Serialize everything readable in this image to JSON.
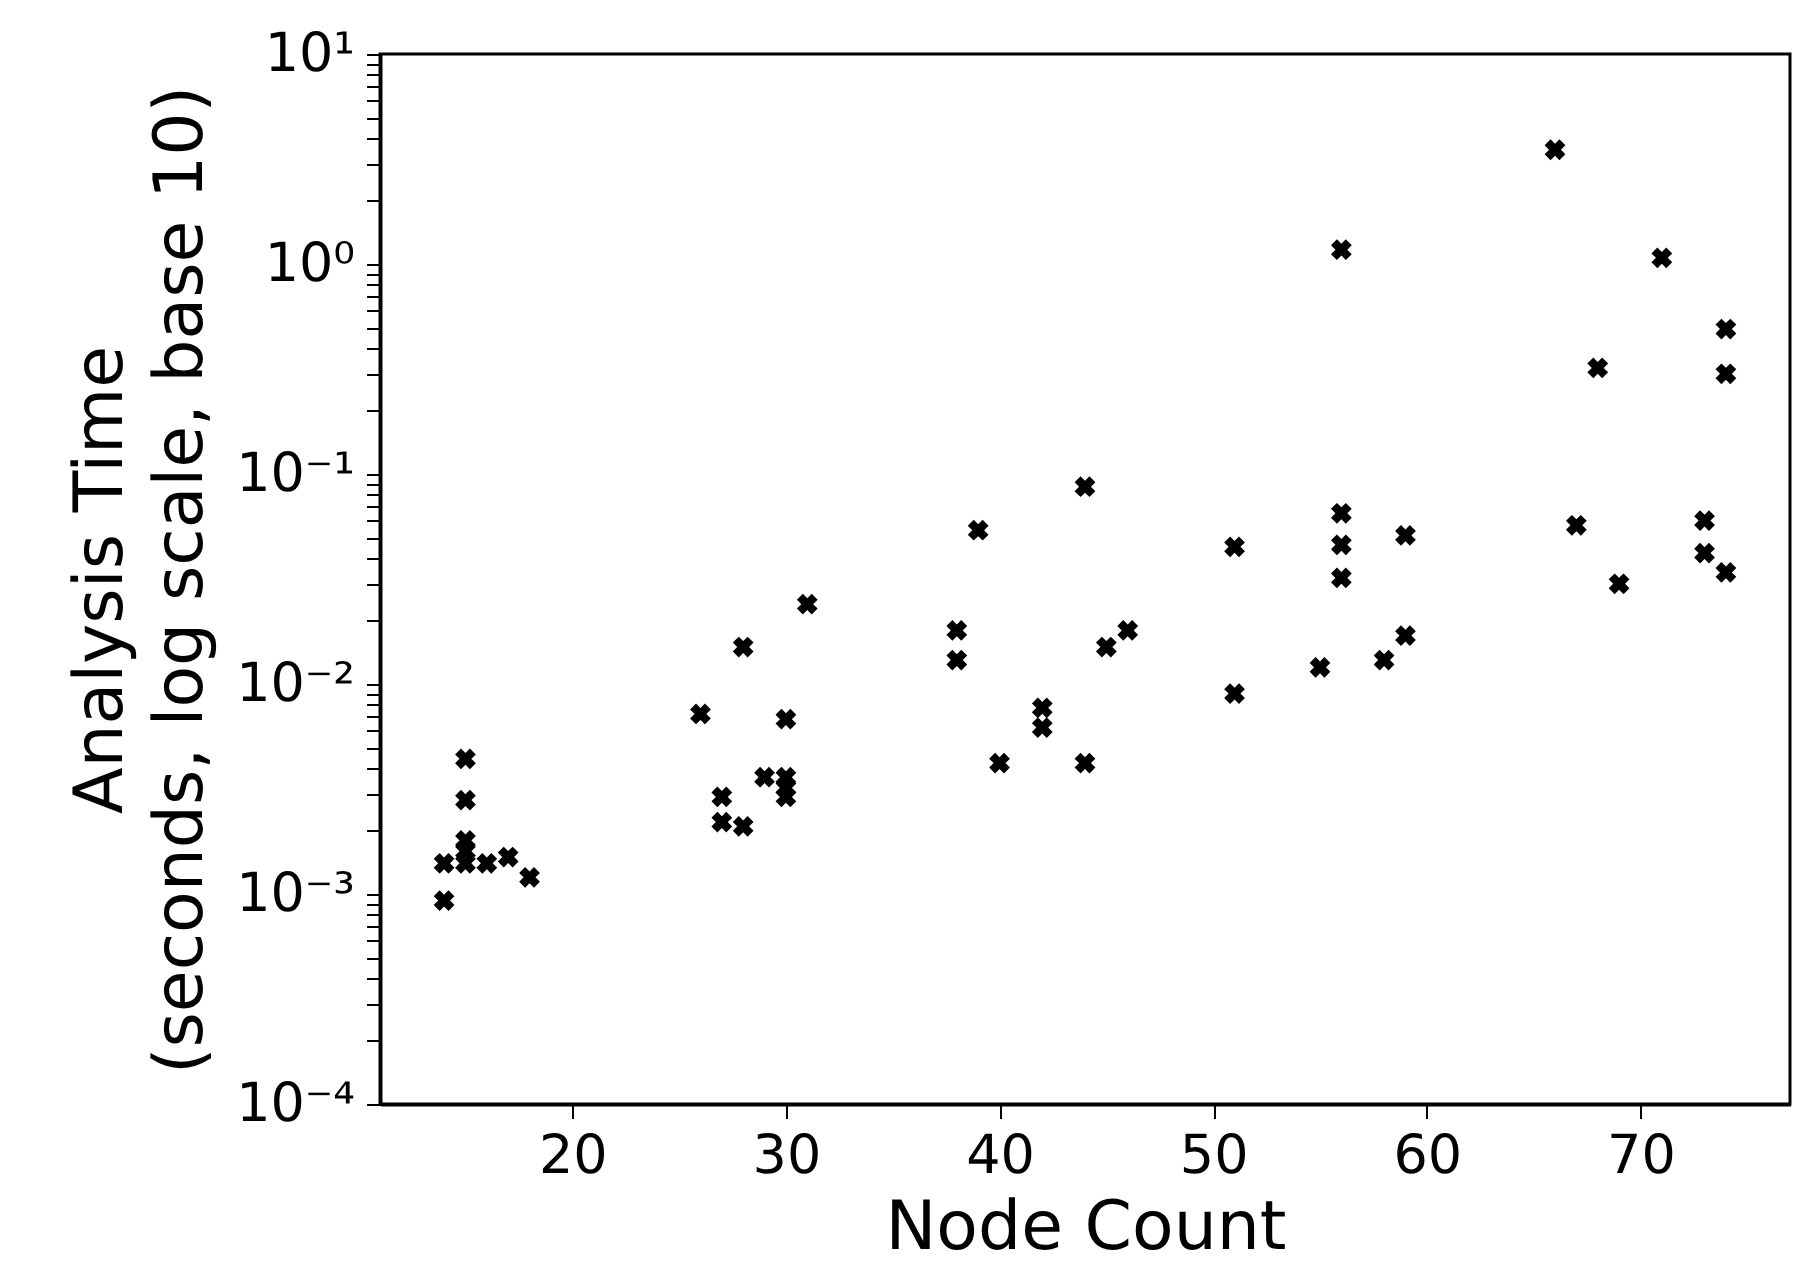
{
  "chart_data": {
    "type": "scatter",
    "xlabel": "Node Count",
    "ylabel": "Analysis Time\n(seconds, log scale, base 10)",
    "log": "y",
    "grid": false,
    "marker": "cross",
    "xlim": [
      11,
      77
    ],
    "xticks": [
      20,
      30,
      40,
      50,
      60,
      70
    ],
    "ylim": [
      0.0001,
      10
    ],
    "yticks": [
      {
        "value": 0.0001,
        "label": "10⁻⁴"
      },
      {
        "value": 0.001,
        "label": "10⁻³"
      },
      {
        "value": 0.01,
        "label": "10⁻²"
      },
      {
        "value": 0.1,
        "label": "10⁻¹"
      },
      {
        "value": 1,
        "label": "10⁰"
      },
      {
        "value": 10,
        "label": "10¹"
      },
      {
        "value": 0.0002,
        "label": null
      },
      {
        "value": 0.0003,
        "label": null
      },
      {
        "value": 0.0004,
        "label": null
      },
      {
        "value": 0.0005,
        "label": null
      },
      {
        "value": 0.0006,
        "label": null
      },
      {
        "value": 0.0007,
        "label": null
      },
      {
        "value": 0.0008,
        "label": null
      },
      {
        "value": 0.0009,
        "label": null
      },
      {
        "value": 0.002,
        "label": null
      },
      {
        "value": 0.003,
        "label": null
      },
      {
        "value": 0.004,
        "label": null
      },
      {
        "value": 0.005,
        "label": null
      },
      {
        "value": 0.006,
        "label": null
      },
      {
        "value": 0.007,
        "label": null
      },
      {
        "value": 0.008,
        "label": null
      },
      {
        "value": 0.009,
        "label": null
      },
      {
        "value": 0.02,
        "label": null
      },
      {
        "value": 0.03,
        "label": null
      },
      {
        "value": 0.04,
        "label": null
      },
      {
        "value": 0.05,
        "label": null
      },
      {
        "value": 0.06,
        "label": null
      },
      {
        "value": 0.07,
        "label": null
      },
      {
        "value": 0.08,
        "label": null
      },
      {
        "value": 0.09,
        "label": null
      },
      {
        "value": 0.2,
        "label": null
      },
      {
        "value": 0.3,
        "label": null
      },
      {
        "value": 0.4,
        "label": null
      },
      {
        "value": 0.5,
        "label": null
      },
      {
        "value": 0.6,
        "label": null
      },
      {
        "value": 0.7,
        "label": null
      },
      {
        "value": 0.8,
        "label": null
      },
      {
        "value": 0.9,
        "label": null
      },
      {
        "value": 2,
        "label": null
      },
      {
        "value": 3,
        "label": null
      },
      {
        "value": 4,
        "label": null
      },
      {
        "value": 5,
        "label": null
      },
      {
        "value": 6,
        "label": null
      },
      {
        "value": 7,
        "label": null
      },
      {
        "value": 8,
        "label": null
      },
      {
        "value": 9,
        "label": null
      }
    ],
    "series": [
      {
        "color": "#000000",
        "x": [
          14,
          14,
          15,
          15,
          15,
          15,
          15,
          16,
          17,
          18,
          26,
          27,
          27,
          28,
          28,
          29,
          30,
          30,
          30,
          30,
          31,
          38,
          38,
          39,
          40,
          42,
          42,
          44,
          44,
          45,
          46,
          51,
          51,
          55,
          56,
          56,
          56,
          56,
          58,
          59,
          59,
          66,
          67,
          68,
          69,
          71,
          73,
          73,
          74,
          74,
          74
        ],
        "values": [
          0.00093,
          0.0014,
          0.0044,
          0.0028,
          0.0018,
          0.0016,
          0.0014,
          0.0014,
          0.0015,
          0.0012,
          0.0072,
          0.0029,
          0.0022,
          0.015,
          0.0021,
          0.0036,
          0.0068,
          0.0036,
          0.0032,
          0.0029,
          0.024,
          0.018,
          0.013,
          0.054,
          0.0042,
          0.0077,
          0.0062,
          0.087,
          0.0042,
          0.015,
          0.018,
          0.045,
          0.009,
          0.012,
          1.17,
          0.065,
          0.046,
          0.032,
          0.013,
          0.051,
          0.017,
          3.5,
          0.057,
          0.32,
          0.03,
          1.07,
          0.06,
          0.042,
          0.49,
          0.3,
          0.034
        ]
      }
    ]
  }
}
